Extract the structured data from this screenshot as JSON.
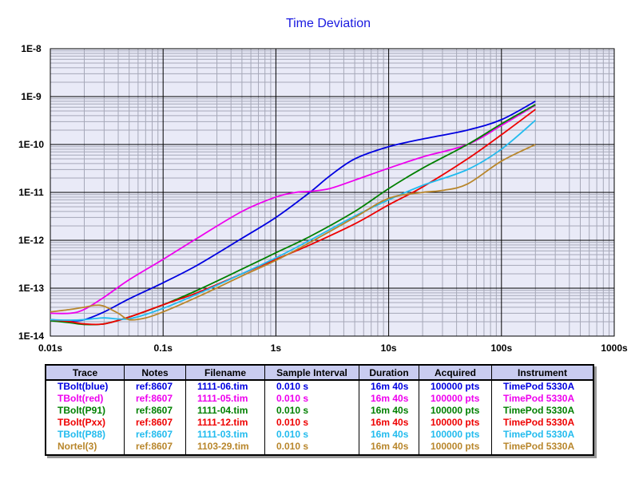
{
  "chart_data": {
    "type": "line",
    "title": "Time Deviation",
    "x_scale": "log",
    "y_scale": "log",
    "xlim": [
      0.01,
      1000
    ],
    "ylim": [
      1e-14,
      1e-08
    ],
    "x_tick_labels": [
      "0.01s",
      "0.1s",
      "1s",
      "10s",
      "100s",
      "1000s"
    ],
    "y_tick_labels": [
      "1E-14",
      "1E-13",
      "1E-12",
      "1E-11",
      "1E-10",
      "1E-9",
      "1E-8"
    ],
    "grid": true,
    "series": [
      {
        "name": "TBolt(blue)",
        "color": "#0000e0",
        "x": [
          0.01,
          0.015,
          0.02,
          0.03,
          0.05,
          0.1,
          0.2,
          0.5,
          1,
          2,
          3,
          5,
          10,
          20,
          50,
          100,
          200
        ],
        "y": [
          2.2e-14,
          2.1e-14,
          2.2e-14,
          3.2e-14,
          6e-14,
          1.3e-13,
          3e-13,
          1.1e-12,
          3e-12,
          1e-11,
          2.2e-11,
          5e-11,
          9e-11,
          1.3e-10,
          2e-10,
          3.3e-10,
          8e-10
        ]
      },
      {
        "name": "TBolt(red)",
        "color": "#ee00ee",
        "x": [
          0.01,
          0.015,
          0.02,
          0.03,
          0.05,
          0.1,
          0.2,
          0.5,
          1,
          1.5,
          2,
          3,
          5,
          10,
          20,
          50,
          100,
          200
        ],
        "y": [
          3e-14,
          3e-14,
          3.6e-14,
          6.5e-14,
          1.5e-13,
          4e-13,
          1.1e-12,
          4e-12,
          8e-12,
          1e-11,
          1.05e-11,
          1.2e-11,
          1.8e-11,
          3.2e-11,
          5.5e-11,
          1e-10,
          2.5e-10,
          6.6e-10
        ]
      },
      {
        "name": "TBolt(P91)",
        "color": "#008000",
        "x": [
          0.01,
          0.015,
          0.02,
          0.03,
          0.05,
          0.1,
          0.2,
          0.5,
          1,
          2,
          5,
          10,
          20,
          50,
          100,
          200
        ],
        "y": [
          2.1e-14,
          1.9e-14,
          1.75e-14,
          1.8e-14,
          2.5e-14,
          4.5e-14,
          9e-14,
          2.5e-13,
          5.5e-13,
          1.2e-12,
          4e-12,
          1.2e-11,
          3.2e-11,
          1e-10,
          2.7e-10,
          6.8e-10
        ]
      },
      {
        "name": "TBolt(Pxx)",
        "color": "#ee0000",
        "x": [
          0.01,
          0.015,
          0.02,
          0.03,
          0.05,
          0.1,
          0.2,
          0.5,
          1,
          2,
          5,
          10,
          20,
          50,
          100,
          200
        ],
        "y": [
          2.2e-14,
          2e-14,
          1.8e-14,
          1.8e-14,
          2.5e-14,
          4.5e-14,
          8e-14,
          2e-13,
          4e-13,
          8e-13,
          2.2e-12,
          5.5e-12,
          1.3e-11,
          5e-11,
          1.6e-10,
          5.4e-10
        ]
      },
      {
        "name": "TBolt(P88)",
        "color": "#22bbee",
        "x": [
          0.01,
          0.015,
          0.02,
          0.03,
          0.05,
          0.1,
          0.2,
          0.5,
          1,
          2,
          5,
          10,
          20,
          50,
          100,
          200
        ],
        "y": [
          2.2e-14,
          2.15e-14,
          2.2e-14,
          2.4e-14,
          2.3e-14,
          3.8e-14,
          7.5e-14,
          2e-13,
          4.3e-13,
          1e-12,
          3.2e-12,
          7e-12,
          1.4e-11,
          3e-11,
          8e-11,
          3.2e-10
        ]
      },
      {
        "name": "Nortel(3)",
        "color": "#b8862b",
        "x": [
          0.01,
          0.015,
          0.02,
          0.025,
          0.03,
          0.04,
          0.05,
          0.07,
          0.1,
          0.2,
          0.5,
          1,
          2,
          5,
          10,
          20,
          30,
          50,
          100,
          200
        ],
        "y": [
          3.2e-14,
          3.6e-14,
          4e-14,
          4.4e-14,
          4.2e-14,
          3e-14,
          2.2e-14,
          2.4e-14,
          3.2e-14,
          6.5e-14,
          1.8e-13,
          3.8e-13,
          9e-13,
          3e-12,
          7.5e-12,
          1e-11,
          1.1e-11,
          1.5e-11,
          4.5e-11,
          1e-10
        ]
      }
    ]
  },
  "table": {
    "headers": [
      "Trace",
      "Notes",
      "Filename",
      "Sample Interval",
      "Duration",
      "Acquired",
      "Instrument"
    ],
    "rows": [
      {
        "color": "#0000e0",
        "cells": [
          "TBolt(blue)",
          "ref:8607",
          "1111-06.tim",
          "0.010 s",
          "16m 40s",
          "100000 pts",
          "TimePod 5330A"
        ]
      },
      {
        "color": "#ee00ee",
        "cells": [
          "TBolt(red)",
          "ref:8607",
          "1111-05.tim",
          "0.010 s",
          "16m 40s",
          "100000 pts",
          "TimePod 5330A"
        ]
      },
      {
        "color": "#008000",
        "cells": [
          "TBolt(P91)",
          "ref:8607",
          "1111-04.tim",
          "0.010 s",
          "16m 40s",
          "100000 pts",
          "TimePod 5330A"
        ]
      },
      {
        "color": "#ee0000",
        "cells": [
          "TBolt(Pxx)",
          "ref:8607",
          "1111-12.tim",
          "0.010 s",
          "16m 40s",
          "100000 pts",
          "TimePod 5330A"
        ]
      },
      {
        "color": "#22bbee",
        "cells": [
          "TBolt(P88)",
          "ref:8607",
          "1111-03.tim",
          "0.010 s",
          "16m 40s",
          "100000 pts",
          "TimePod 5330A"
        ]
      },
      {
        "color": "#b8862b",
        "cells": [
          "Nortel(3)",
          "ref:8607",
          "1103-29.tim",
          "0.010 s",
          "16m 40s",
          "100000 pts",
          "TimePod 5330A"
        ]
      }
    ]
  }
}
